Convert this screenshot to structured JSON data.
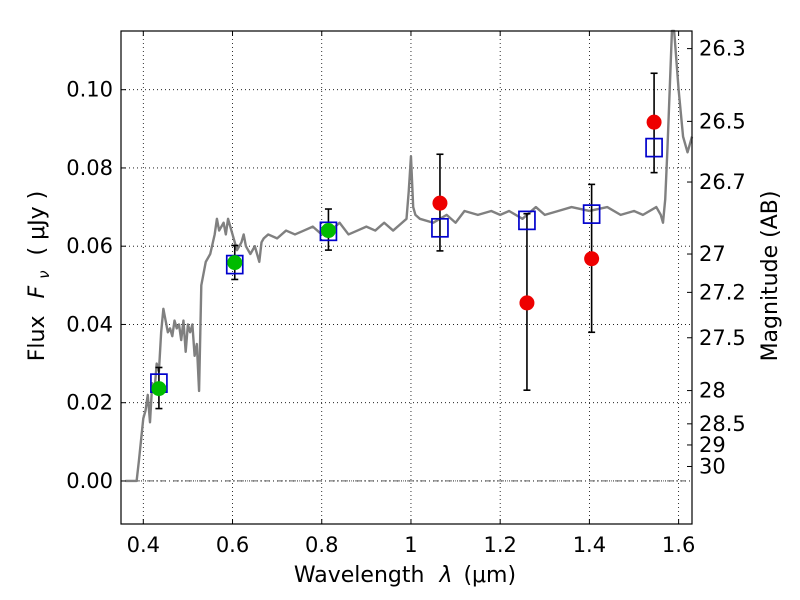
{
  "chart_data": {
    "type": "scatter",
    "title": "",
    "xlabel_prefix": "Wavelength",
    "xlabel_symbol": "λ",
    "xlabel_unit": "(μm)",
    "ylabel_prefix": "Flux",
    "ylabel_symbol": "F",
    "ylabel_sub": "ν",
    "ylabel_unit": "( μJy )",
    "y2label": "Magnitude (AB)",
    "xlim": [
      0.35,
      1.63
    ],
    "ylim": [
      -0.011,
      0.115
    ],
    "x_ticks": [
      0.4,
      0.6,
      0.8,
      1.0,
      1.2,
      1.4,
      1.6
    ],
    "x_tick_labels": [
      "0.4",
      "0.6",
      "0.8",
      "1",
      "1.2",
      "1.4",
      "1.6"
    ],
    "y_ticks": [
      0.0,
      0.02,
      0.04,
      0.06,
      0.08,
      0.1
    ],
    "y_tick_labels": [
      "0.00",
      "0.02",
      "0.04",
      "0.06",
      "0.08",
      "0.10"
    ],
    "grid": true,
    "mag_ticks": [
      {
        "label": "26.3",
        "flux": 0.1105
      },
      {
        "label": "26.5",
        "flux": 0.0919
      },
      {
        "label": "26.7",
        "flux": 0.0764
      },
      {
        "label": "27",
        "flux": 0.058
      },
      {
        "label": "27.2",
        "flux": 0.0482
      },
      {
        "label": "27.5",
        "flux": 0.0366
      },
      {
        "label": "28",
        "flux": 0.0231
      },
      {
        "label": "28.5",
        "flux": 0.0146
      },
      {
        "label": "29",
        "flux": 0.0092
      },
      {
        "label": "30",
        "flux": 0.0037
      }
    ],
    "colors": {
      "sed": "#808080",
      "model": "#0000cc",
      "observed_red": "#ee0000",
      "observed_green": "#00bb00",
      "errorbar": "#000000"
    },
    "series": [
      {
        "type": "line",
        "x": [
          0.36,
          0.385,
          0.39,
          0.4,
          0.405,
          0.41,
          0.415,
          0.42,
          0.425,
          0.43,
          0.435,
          0.44,
          0.445,
          0.45,
          0.455,
          0.46,
          0.465,
          0.47,
          0.475,
          0.48,
          0.485,
          0.49,
          0.495,
          0.5,
          0.505,
          0.51,
          0.515,
          0.52,
          0.525,
          0.53,
          0.54,
          0.55,
          0.56,
          0.565,
          0.57,
          0.58,
          0.585,
          0.59,
          0.6,
          0.61,
          0.62,
          0.625,
          0.63,
          0.64,
          0.65,
          0.66,
          0.665,
          0.67,
          0.68,
          0.7,
          0.72,
          0.74,
          0.76,
          0.78,
          0.8,
          0.82,
          0.84,
          0.86,
          0.88,
          0.9,
          0.92,
          0.94,
          0.96,
          0.98,
          0.99,
          0.995,
          1.0,
          1.005,
          1.01,
          1.02,
          1.05,
          1.08,
          1.1,
          1.12,
          1.15,
          1.18,
          1.2,
          1.22,
          1.25,
          1.28,
          1.3,
          1.33,
          1.36,
          1.4,
          1.44,
          1.47,
          1.5,
          1.52,
          1.55,
          1.56,
          1.565,
          1.57,
          1.575,
          1.58,
          1.585,
          1.59,
          1.6,
          1.61,
          1.62,
          1.63
        ],
        "y": [
          0.0,
          0.0,
          0.005,
          0.016,
          0.018,
          0.022,
          0.015,
          0.025,
          0.023,
          0.03,
          0.028,
          0.038,
          0.044,
          0.041,
          0.038,
          0.039,
          0.037,
          0.041,
          0.039,
          0.04,
          0.036,
          0.041,
          0.033,
          0.04,
          0.038,
          0.04,
          0.032,
          0.035,
          0.023,
          0.05,
          0.056,
          0.058,
          0.063,
          0.067,
          0.064,
          0.066,
          0.063,
          0.067,
          0.063,
          0.059,
          0.061,
          0.063,
          0.06,
          0.058,
          0.06,
          0.056,
          0.061,
          0.062,
          0.063,
          0.062,
          0.064,
          0.063,
          0.064,
          0.065,
          0.063,
          0.064,
          0.066,
          0.063,
          0.064,
          0.065,
          0.064,
          0.066,
          0.064,
          0.066,
          0.067,
          0.074,
          0.083,
          0.07,
          0.068,
          0.067,
          0.066,
          0.068,
          0.066,
          0.069,
          0.068,
          0.069,
          0.068,
          0.069,
          0.067,
          0.07,
          0.068,
          0.069,
          0.07,
          0.069,
          0.07,
          0.068,
          0.069,
          0.068,
          0.07,
          0.068,
          0.066,
          0.072,
          0.085,
          0.1,
          0.115,
          0.115,
          0.1,
          0.088,
          0.084,
          0.088
        ]
      },
      {
        "type": "scatter",
        "marker": "open-square",
        "x": [
          0.435,
          0.605,
          0.815,
          1.065,
          1.26,
          1.405,
          1.545
        ],
        "y": [
          0.025,
          0.0553,
          0.0638,
          0.0647,
          0.0666,
          0.0682,
          0.0852
        ]
      },
      {
        "type": "scatter",
        "marker": "filled-circle",
        "x": [
          0.435,
          0.605,
          0.815,
          1.065,
          1.26,
          1.405,
          1.545
        ],
        "y": [
          0.0236,
          0.0558,
          0.064,
          0.071,
          0.0455,
          0.0568,
          0.0917
        ],
        "yerr_low": [
          0.0185,
          0.0515,
          0.059,
          0.0588,
          0.0232,
          0.038,
          0.0788
        ],
        "yerr_high": [
          0.029,
          0.0602,
          0.0695,
          0.0835,
          0.0683,
          0.0758,
          0.1042
        ],
        "colors": [
          "green",
          "green",
          "green",
          "red",
          "red",
          "red",
          "red"
        ]
      }
    ]
  }
}
